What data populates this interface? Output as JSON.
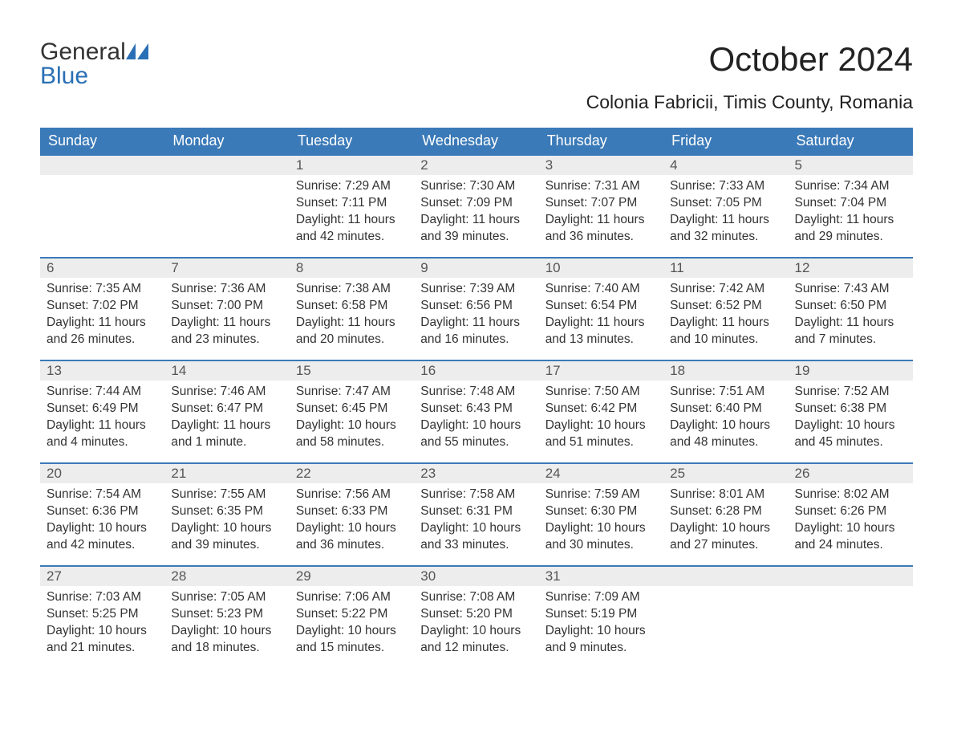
{
  "brand": {
    "word1": "General",
    "word2": "Blue"
  },
  "month_title": "October 2024",
  "location": "Colonia Fabricii, Timis County, Romania",
  "weekdays": [
    "Sunday",
    "Monday",
    "Tuesday",
    "Wednesday",
    "Thursday",
    "Friday",
    "Saturday"
  ],
  "colors": {
    "header_bg": "#3b7ab8",
    "header_text": "#ffffff",
    "daynum_bg": "#ededed",
    "rule": "#3b7ab8",
    "brand_blue": "#2a6fb5",
    "body_text": "#333333"
  },
  "weeks": [
    [
      {
        "n": "",
        "sunrise": "",
        "sunset": "",
        "dl1": "",
        "dl2": ""
      },
      {
        "n": "",
        "sunrise": "",
        "sunset": "",
        "dl1": "",
        "dl2": ""
      },
      {
        "n": "1",
        "sunrise": "Sunrise: 7:29 AM",
        "sunset": "Sunset: 7:11 PM",
        "dl1": "Daylight: 11 hours",
        "dl2": "and 42 minutes."
      },
      {
        "n": "2",
        "sunrise": "Sunrise: 7:30 AM",
        "sunset": "Sunset: 7:09 PM",
        "dl1": "Daylight: 11 hours",
        "dl2": "and 39 minutes."
      },
      {
        "n": "3",
        "sunrise": "Sunrise: 7:31 AM",
        "sunset": "Sunset: 7:07 PM",
        "dl1": "Daylight: 11 hours",
        "dl2": "and 36 minutes."
      },
      {
        "n": "4",
        "sunrise": "Sunrise: 7:33 AM",
        "sunset": "Sunset: 7:05 PM",
        "dl1": "Daylight: 11 hours",
        "dl2": "and 32 minutes."
      },
      {
        "n": "5",
        "sunrise": "Sunrise: 7:34 AM",
        "sunset": "Sunset: 7:04 PM",
        "dl1": "Daylight: 11 hours",
        "dl2": "and 29 minutes."
      }
    ],
    [
      {
        "n": "6",
        "sunrise": "Sunrise: 7:35 AM",
        "sunset": "Sunset: 7:02 PM",
        "dl1": "Daylight: 11 hours",
        "dl2": "and 26 minutes."
      },
      {
        "n": "7",
        "sunrise": "Sunrise: 7:36 AM",
        "sunset": "Sunset: 7:00 PM",
        "dl1": "Daylight: 11 hours",
        "dl2": "and 23 minutes."
      },
      {
        "n": "8",
        "sunrise": "Sunrise: 7:38 AM",
        "sunset": "Sunset: 6:58 PM",
        "dl1": "Daylight: 11 hours",
        "dl2": "and 20 minutes."
      },
      {
        "n": "9",
        "sunrise": "Sunrise: 7:39 AM",
        "sunset": "Sunset: 6:56 PM",
        "dl1": "Daylight: 11 hours",
        "dl2": "and 16 minutes."
      },
      {
        "n": "10",
        "sunrise": "Sunrise: 7:40 AM",
        "sunset": "Sunset: 6:54 PM",
        "dl1": "Daylight: 11 hours",
        "dl2": "and 13 minutes."
      },
      {
        "n": "11",
        "sunrise": "Sunrise: 7:42 AM",
        "sunset": "Sunset: 6:52 PM",
        "dl1": "Daylight: 11 hours",
        "dl2": "and 10 minutes."
      },
      {
        "n": "12",
        "sunrise": "Sunrise: 7:43 AM",
        "sunset": "Sunset: 6:50 PM",
        "dl1": "Daylight: 11 hours",
        "dl2": "and 7 minutes."
      }
    ],
    [
      {
        "n": "13",
        "sunrise": "Sunrise: 7:44 AM",
        "sunset": "Sunset: 6:49 PM",
        "dl1": "Daylight: 11 hours",
        "dl2": "and 4 minutes."
      },
      {
        "n": "14",
        "sunrise": "Sunrise: 7:46 AM",
        "sunset": "Sunset: 6:47 PM",
        "dl1": "Daylight: 11 hours",
        "dl2": "and 1 minute."
      },
      {
        "n": "15",
        "sunrise": "Sunrise: 7:47 AM",
        "sunset": "Sunset: 6:45 PM",
        "dl1": "Daylight: 10 hours",
        "dl2": "and 58 minutes."
      },
      {
        "n": "16",
        "sunrise": "Sunrise: 7:48 AM",
        "sunset": "Sunset: 6:43 PM",
        "dl1": "Daylight: 10 hours",
        "dl2": "and 55 minutes."
      },
      {
        "n": "17",
        "sunrise": "Sunrise: 7:50 AM",
        "sunset": "Sunset: 6:42 PM",
        "dl1": "Daylight: 10 hours",
        "dl2": "and 51 minutes."
      },
      {
        "n": "18",
        "sunrise": "Sunrise: 7:51 AM",
        "sunset": "Sunset: 6:40 PM",
        "dl1": "Daylight: 10 hours",
        "dl2": "and 48 minutes."
      },
      {
        "n": "19",
        "sunrise": "Sunrise: 7:52 AM",
        "sunset": "Sunset: 6:38 PM",
        "dl1": "Daylight: 10 hours",
        "dl2": "and 45 minutes."
      }
    ],
    [
      {
        "n": "20",
        "sunrise": "Sunrise: 7:54 AM",
        "sunset": "Sunset: 6:36 PM",
        "dl1": "Daylight: 10 hours",
        "dl2": "and 42 minutes."
      },
      {
        "n": "21",
        "sunrise": "Sunrise: 7:55 AM",
        "sunset": "Sunset: 6:35 PM",
        "dl1": "Daylight: 10 hours",
        "dl2": "and 39 minutes."
      },
      {
        "n": "22",
        "sunrise": "Sunrise: 7:56 AM",
        "sunset": "Sunset: 6:33 PM",
        "dl1": "Daylight: 10 hours",
        "dl2": "and 36 minutes."
      },
      {
        "n": "23",
        "sunrise": "Sunrise: 7:58 AM",
        "sunset": "Sunset: 6:31 PM",
        "dl1": "Daylight: 10 hours",
        "dl2": "and 33 minutes."
      },
      {
        "n": "24",
        "sunrise": "Sunrise: 7:59 AM",
        "sunset": "Sunset: 6:30 PM",
        "dl1": "Daylight: 10 hours",
        "dl2": "and 30 minutes."
      },
      {
        "n": "25",
        "sunrise": "Sunrise: 8:01 AM",
        "sunset": "Sunset: 6:28 PM",
        "dl1": "Daylight: 10 hours",
        "dl2": "and 27 minutes."
      },
      {
        "n": "26",
        "sunrise": "Sunrise: 8:02 AM",
        "sunset": "Sunset: 6:26 PM",
        "dl1": "Daylight: 10 hours",
        "dl2": "and 24 minutes."
      }
    ],
    [
      {
        "n": "27",
        "sunrise": "Sunrise: 7:03 AM",
        "sunset": "Sunset: 5:25 PM",
        "dl1": "Daylight: 10 hours",
        "dl2": "and 21 minutes."
      },
      {
        "n": "28",
        "sunrise": "Sunrise: 7:05 AM",
        "sunset": "Sunset: 5:23 PM",
        "dl1": "Daylight: 10 hours",
        "dl2": "and 18 minutes."
      },
      {
        "n": "29",
        "sunrise": "Sunrise: 7:06 AM",
        "sunset": "Sunset: 5:22 PM",
        "dl1": "Daylight: 10 hours",
        "dl2": "and 15 minutes."
      },
      {
        "n": "30",
        "sunrise": "Sunrise: 7:08 AM",
        "sunset": "Sunset: 5:20 PM",
        "dl1": "Daylight: 10 hours",
        "dl2": "and 12 minutes."
      },
      {
        "n": "31",
        "sunrise": "Sunrise: 7:09 AM",
        "sunset": "Sunset: 5:19 PM",
        "dl1": "Daylight: 10 hours",
        "dl2": "and 9 minutes."
      },
      {
        "n": "",
        "sunrise": "",
        "sunset": "",
        "dl1": "",
        "dl2": ""
      },
      {
        "n": "",
        "sunrise": "",
        "sunset": "",
        "dl1": "",
        "dl2": ""
      }
    ]
  ]
}
